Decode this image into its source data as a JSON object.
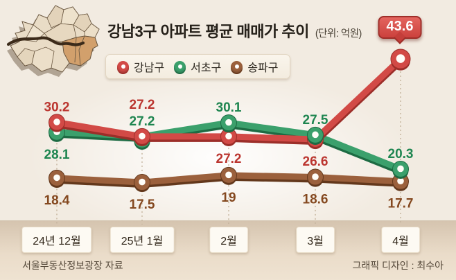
{
  "header": {
    "title": "강남3구 아파트 평균 매매가 추이",
    "unit": "(단위: 억원)"
  },
  "legend": {
    "items": [
      {
        "label": "강남구",
        "color": "#d24a46",
        "dark": "#9e2f2a"
      },
      {
        "label": "서초구",
        "color": "#3ba06c",
        "dark": "#1f6b44"
      },
      {
        "label": "송파구",
        "color": "#9b603c",
        "dark": "#66391d"
      }
    ]
  },
  "callout": {
    "value": "43.6"
  },
  "footer": {
    "source": "서울부동산정보광장 자료",
    "credit": "그래픽 디자인 : 최수아"
  },
  "chart_data": {
    "type": "line",
    "title": "강남3구 아파트 평균 매매가 추이",
    "unit": "억원",
    "categories": [
      "24년 12월",
      "25년 1월",
      "2월",
      "3월",
      "4월"
    ],
    "series": [
      {
        "name": "강남구",
        "color": "#d24a46",
        "dark": "#9c2e29",
        "label_color": "#bb352f",
        "values": [
          30.2,
          27.2,
          27.2,
          26.6,
          43.6
        ],
        "label_pos": [
          "above",
          "above2",
          "below",
          "below",
          "callout"
        ]
      },
      {
        "name": "서초구",
        "color": "#3ba06c",
        "dark": "#1d6b43",
        "label_color": "#1e8550",
        "values": [
          28.1,
          27.2,
          30.1,
          27.5,
          20.3
        ],
        "label_pos": [
          "below",
          "above",
          "above",
          "above",
          "above"
        ]
      },
      {
        "name": "송파구",
        "color": "#9b603c",
        "dark": "#63381c",
        "label_color": "#84481f",
        "values": [
          18.4,
          17.5,
          19,
          18.6,
          17.7
        ],
        "label_pos": [
          "below",
          "below",
          "below",
          "below",
          "below"
        ]
      }
    ],
    "ylim": [
      17,
      45
    ],
    "legend_position": "top",
    "grid": "dotted-vertical-guides"
  }
}
